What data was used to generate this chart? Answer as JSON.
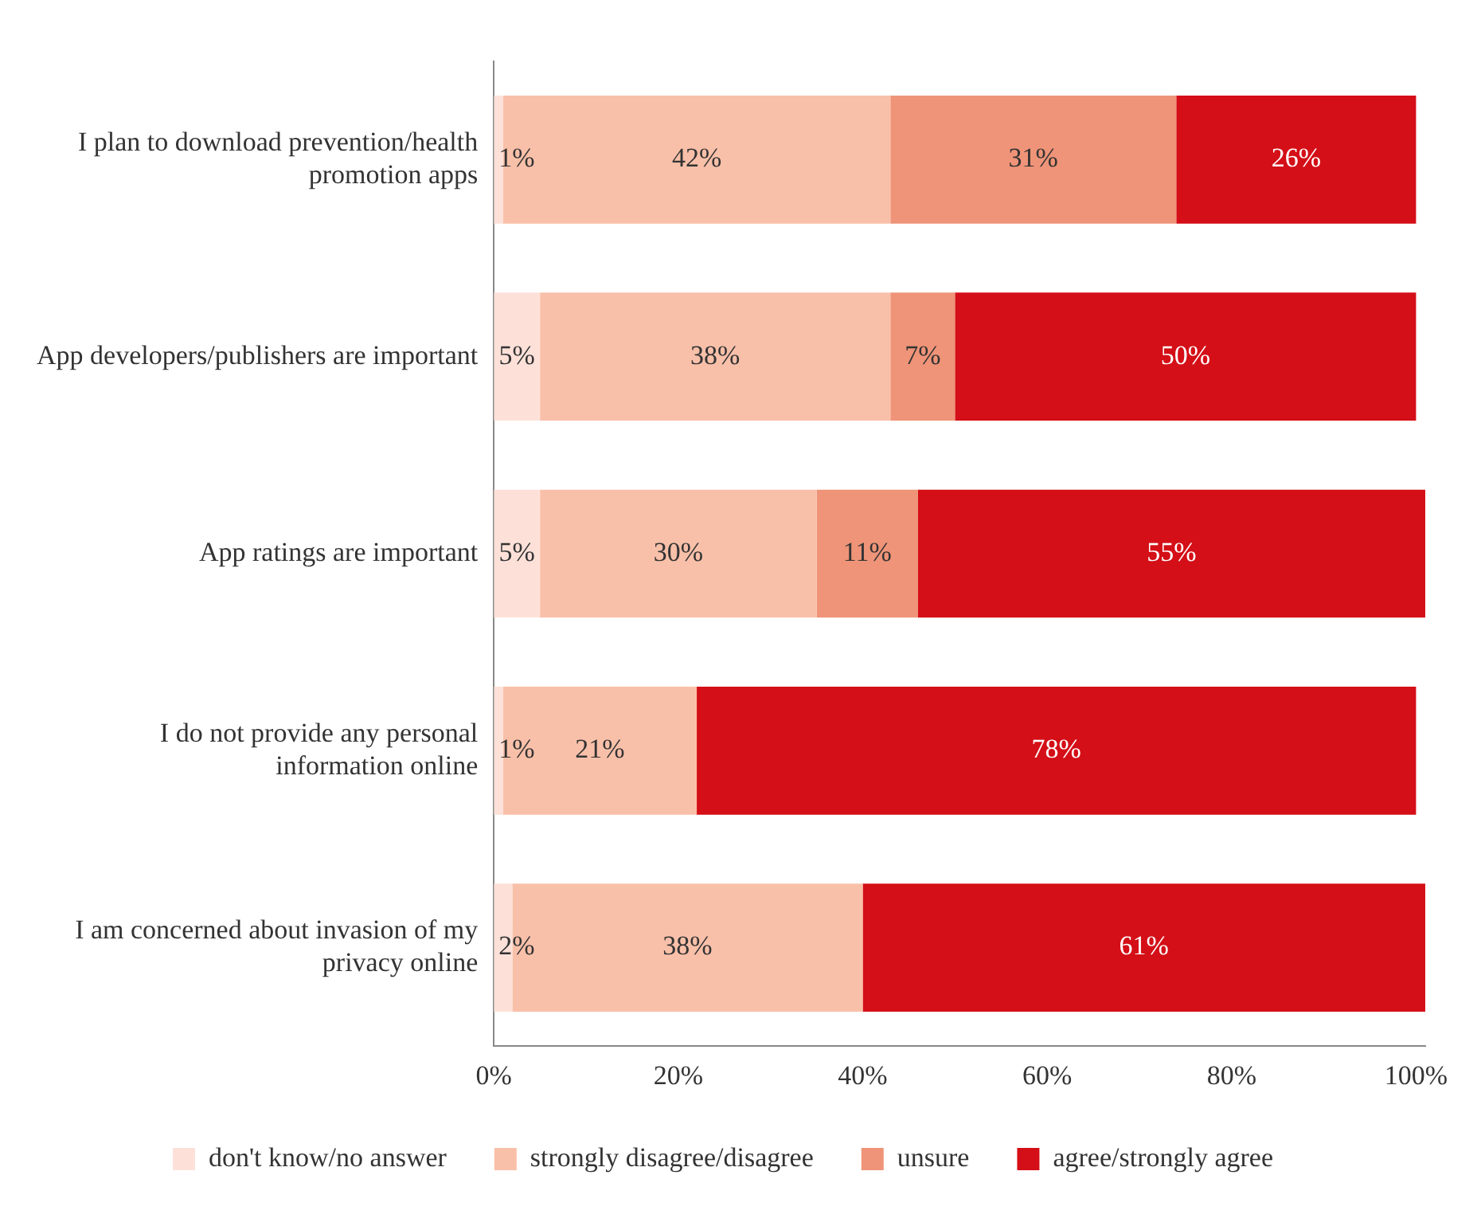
{
  "chart_data": {
    "type": "bar",
    "orientation": "horizontal",
    "stacked": true,
    "categories": [
      "I plan to download prevention/health promotion apps",
      "App developers/publishers are important",
      "App ratings are important",
      "I do not provide any personal information online",
      "I am concerned about invasion of my privacy online"
    ],
    "series": [
      {
        "name": "don't know/no answer",
        "color": "#fde1d9",
        "values": [
          1,
          5,
          5,
          1,
          2
        ],
        "value_labels": [
          "1%",
          "5%",
          "5%",
          "1%",
          "2%"
        ]
      },
      {
        "name": "strongly disagree/disagree",
        "color": "#f9c0a9",
        "values": [
          42,
          38,
          30,
          21,
          38
        ],
        "value_labels": [
          "42%",
          "38%",
          "30%",
          "21%",
          "38%"
        ]
      },
      {
        "name": "unsure",
        "color": "#ef9478",
        "values": [
          31,
          7,
          11,
          null,
          null
        ],
        "value_labels": [
          "31%",
          "7%",
          "11%",
          null,
          null
        ]
      },
      {
        "name": "agree/strongly agree",
        "color": "#d40f17",
        "values": [
          26,
          50,
          55,
          78,
          61
        ],
        "value_labels": [
          "26%",
          "50%",
          "55%",
          "78%",
          "61%"
        ]
      }
    ],
    "xlim": [
      0,
      101
    ],
    "xticks": [
      {
        "value": 0,
        "label": "0%"
      },
      {
        "value": 20,
        "label": "20%"
      },
      {
        "value": 40,
        "label": "40%"
      },
      {
        "value": 60,
        "label": "60%"
      },
      {
        "value": 80,
        "label": "80%"
      },
      {
        "value": 100,
        "label": "100%"
      }
    ],
    "grid": false,
    "legend": "bottom"
  }
}
